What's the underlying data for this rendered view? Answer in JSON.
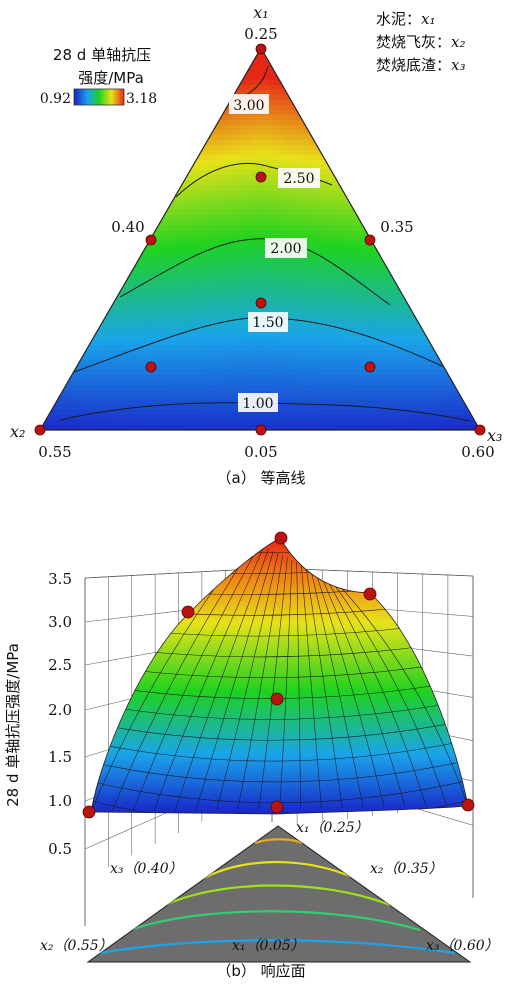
{
  "chart_data": [
    {
      "type": "heatmap",
      "subtype": "ternary-contour",
      "caption": "（a）  等高线",
      "legend": {
        "title_line1": "28 d 单轴抗压",
        "title_line2": "强度/MPa",
        "min_label": "0.92",
        "max_label": "3.18",
        "min": 0.92,
        "max": 3.18,
        "colors": [
          "#1a22c8",
          "#1aa4ea",
          "#1fd21f",
          "#e8e21a",
          "#e52816"
        ]
      },
      "components": {
        "line1_label": "水泥：",
        "line1_var": "x₁",
        "line2_label": "焚烧飞灰：",
        "line2_var": "x₂",
        "line3_label": "焚烧底渣：",
        "line3_var": "x₃"
      },
      "vertices": {
        "top_var": "x₁",
        "top_value": "0.25",
        "left_var": "x₂",
        "left_value": "0.55",
        "right_var": "x₃",
        "right_value": "0.60",
        "bottom_mid_value": "0.05",
        "left_edge_value": "0.40",
        "right_edge_value": "0.35"
      },
      "contour_levels": [
        "1.00",
        "1.50",
        "2.00",
        "2.50",
        "3.00"
      ],
      "design_points": [
        {
          "name": "top",
          "strength": 3.18
        },
        {
          "name": "left",
          "strength": 0.92
        },
        {
          "name": "right",
          "strength": 0.95
        },
        {
          "name": "left-edge-mid",
          "strength": 1.9
        },
        {
          "name": "right-edge-mid",
          "strength": 2.0
        },
        {
          "name": "bottom-mid",
          "strength": 0.95
        },
        {
          "name": "center",
          "strength": 1.75
        },
        {
          "name": "upper-center",
          "strength": 2.5
        },
        {
          "name": "lower-left",
          "strength": 1.3
        },
        {
          "name": "lower-right",
          "strength": 1.3
        }
      ]
    },
    {
      "type": "heatmap",
      "subtype": "3d-response-surface",
      "caption": "（b）  响应面",
      "zlabel": "28 d 单轴抗压强度/MPa",
      "z_ticks": [
        "3.5",
        "3.0",
        "2.5",
        "2.0",
        "1.5",
        "1.0",
        "0.5"
      ],
      "z_range": [
        0.5,
        3.5
      ],
      "base_labels": {
        "top": "x₁（0.25）",
        "left_edge": "x₃（0.40）",
        "right_edge": "x₂（0.35）",
        "left": "x₂（0.55）",
        "bottom_mid": "x₁（0.05）",
        "right": "x₃（0.60）"
      }
    }
  ]
}
